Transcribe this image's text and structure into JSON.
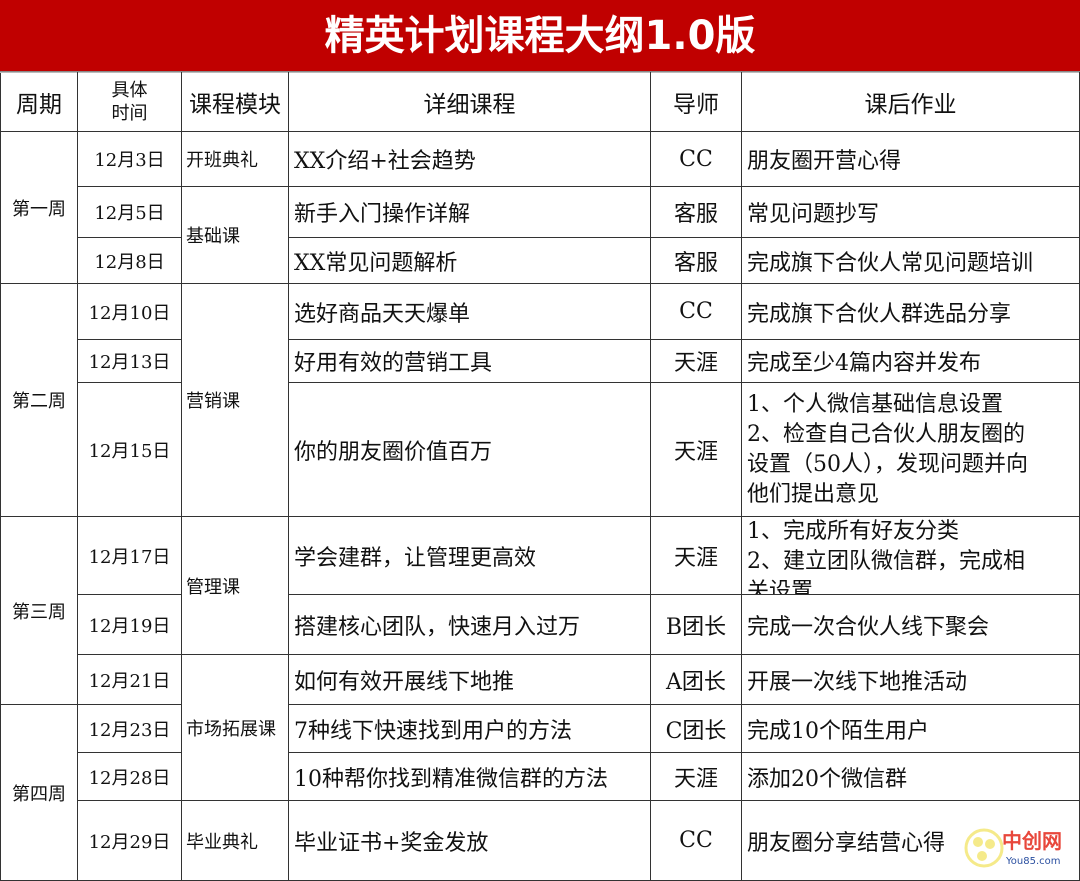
{
  "title": "精英计划课程大纲1.0版",
  "headers": [
    "周期",
    "具体\n时间",
    "课程模块",
    "详细课程",
    "导师",
    "课后作业"
  ],
  "headers_split": {
    "time_line1": "具体",
    "time_line2": "时间"
  },
  "weeks": [
    "第一周",
    "第二周",
    "第三周",
    "第四周"
  ],
  "modules": [
    "开班典礼",
    "基础课",
    "营销课",
    "管理课",
    "市场拓展课",
    "毕业典礼"
  ],
  "rows": [
    {
      "date": "12月3日",
      "course": "XX介绍+社会趋势",
      "tutor": "CC",
      "homework": "朋友圈开营心得"
    },
    {
      "date": "12月5日",
      "course": "新手入门操作详解",
      "tutor": "客服",
      "homework": "常见问题抄写"
    },
    {
      "date": "12月8日",
      "course": "XX常见问题解析",
      "tutor": "客服",
      "homework": "完成旗下合伙人常见问题培训"
    },
    {
      "date": "12月10日",
      "course": "选好商品天天爆单",
      "tutor": "CC",
      "homework": "完成旗下合伙人群选品分享"
    },
    {
      "date": "12月13日",
      "course": "好用有效的营销工具",
      "tutor": "天涯",
      "homework": "完成至少4篇内容并发布"
    },
    {
      "date": "12月15日",
      "course": "你的朋友圈价值百万",
      "tutor": "天涯",
      "homework": "1、个人微信基础信息设置\n2、检查自己合伙人朋友圈的设置（50人），发现问题并向他们提出意见",
      "homework_lines": [
        "1、个人微信基础信息设置",
        "2、检查自己合伙人朋友圈的",
        "设置（50人），发现问题并向",
        "他们提出意见"
      ]
    },
    {
      "date": "12月17日",
      "course": "学会建群，让管理更高效",
      "tutor": "天涯",
      "homework_lines": [
        "1、完成所有好友分类",
        "2、建立团队微信群，完成相",
        "关设置"
      ]
    },
    {
      "date": "12月19日",
      "course": "搭建核心团队，快速月入过万",
      "tutor": "B团长",
      "homework": "完成一次合伙人线下聚会"
    },
    {
      "date": "12月21日",
      "course": "如何有效开展线下地推",
      "tutor": "A团长",
      "homework": "开展一次线下地推活动"
    },
    {
      "date": "12月23日",
      "course": "7种线下快速找到用户的方法",
      "tutor": "C团长",
      "homework": "完成10个陌生用户"
    },
    {
      "date": "12月28日",
      "course": "10种帮你找到精准微信群的方法",
      "tutor": "天涯",
      "homework": "添加20个微信群"
    },
    {
      "date": "12月29日",
      "course": "毕业证书+奖金发放",
      "tutor": "CC",
      "homework": "朋友圈分享结营心得"
    }
  ],
  "watermark": {
    "text": "中创网",
    "sub": "You85.com",
    "color": "#e8473b"
  },
  "colors": {
    "title_bg": "#c00000",
    "title_fg": "#ffffff"
  }
}
